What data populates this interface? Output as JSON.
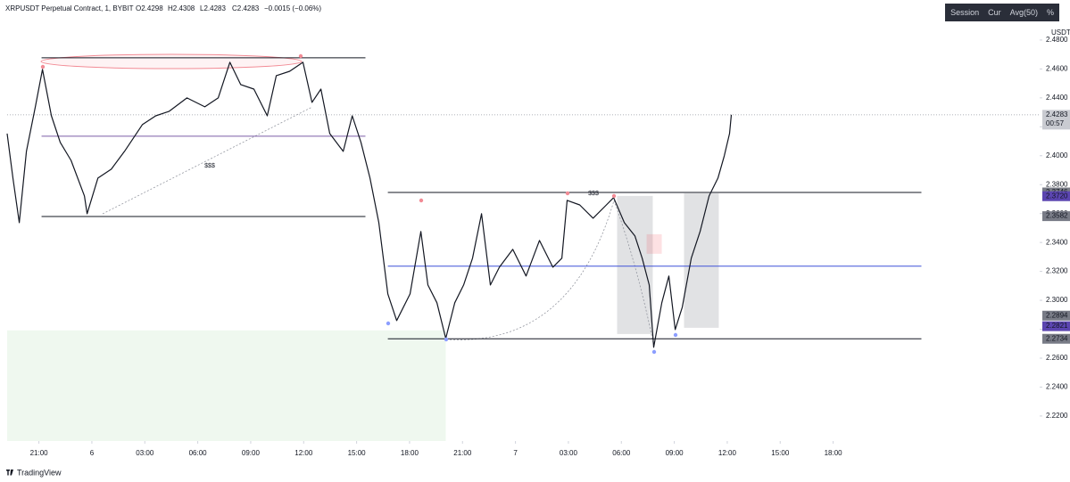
{
  "chart_data": {
    "type": "line",
    "title": "XRPUSDT Perpetual Contract, 1, BYBIT",
    "ohlc": [
      "O2.4298",
      "H2.4308",
      "L2.4283",
      "C2.4283",
      "−0.0015 (−0.06%)"
    ],
    "toolbar": [
      "Session",
      "Cur",
      "Avg(50)",
      "%"
    ],
    "axis_unit": "USDT",
    "brand": "TradingView",
    "countdown": "00:57",
    "color": "#131722",
    "x": [
      19.2,
      19.53,
      19.89,
      20.29,
      20.8,
      21.2,
      21.71,
      22.21,
      22.82,
      23.58,
      23.73,
      24.34,
      25.1,
      25.85,
      26.86,
      27.62,
      28.38,
      29.39,
      30.4,
      31.16,
      31.82,
      32.43,
      33.18,
      33.94,
      34.45,
      35.21,
      35.96,
      36.47,
      36.98,
      37.48,
      38.24,
      38.75,
      39.25,
      39.76,
      40.26,
      40.77,
      41.27,
      42.03,
      42.64,
      43.04,
      43.55,
      44.05,
      44.56,
      45.06,
      45.57,
      46.08,
      46.58,
      47.09,
      47.85,
      48.6,
      49.36,
      50.12,
      50.63,
      50.93,
      51.64,
      52.4,
      53.15,
      53.56,
      54.17,
      54.77,
      55.18,
      55.58,
      55.83,
      56.29,
      56.69,
      57.05,
      57.45,
      57.96,
      58.46,
      58.97,
      59.47,
      59.83,
      60.13,
      60.23
    ],
    "values": [
      2.4153,
      2.3845,
      2.3537,
      2.403,
      2.4338,
      2.4597,
      2.4276,
      2.4092,
      2.3968,
      2.3722,
      2.3599,
      2.3845,
      2.3907,
      2.403,
      2.4215,
      2.4276,
      2.4307,
      2.44,
      2.4338,
      2.44,
      2.4646,
      2.4492,
      2.4461,
      2.4276,
      2.4554,
      2.4584,
      2.4646,
      2.4369,
      2.4461,
      2.4153,
      2.403,
      2.4276,
      2.4092,
      2.3845,
      2.3537,
      2.3044,
      2.286,
      2.3044,
      2.3476,
      2.3106,
      2.2983,
      2.2736,
      2.2983,
      2.3106,
      2.3291,
      2.3599,
      2.3106,
      2.3229,
      2.3352,
      2.3168,
      2.3414,
      2.3229,
      2.3291,
      2.3691,
      2.366,
      2.3568,
      2.366,
      2.371,
      2.3537,
      2.3445,
      2.3291,
      2.3106,
      2.2675,
      2.2983,
      2.3168,
      2.2798,
      2.2952,
      2.3291,
      2.3476,
      2.3722,
      2.3845,
      2.3999,
      2.4153,
      2.4283
    ],
    "xlim": [
      19.2,
      77.7
    ],
    "ylim": [
      2.2027,
      2.4892
    ],
    "xticks": [
      {
        "value": 21,
        "label": "21:00"
      },
      {
        "value": 24,
        "label": "6"
      },
      {
        "value": 27,
        "label": "03:00"
      },
      {
        "value": 30,
        "label": "06:00"
      },
      {
        "value": 33,
        "label": "09:00"
      },
      {
        "value": 36,
        "label": "12:00"
      },
      {
        "value": 39,
        "label": "15:00"
      },
      {
        "value": 42,
        "label": "18:00"
      },
      {
        "value": 45,
        "label": "21:00"
      },
      {
        "value": 48,
        "label": "7"
      },
      {
        "value": 51,
        "label": "03:00"
      },
      {
        "value": 54,
        "label": "06:00"
      },
      {
        "value": 57,
        "label": "09:00"
      },
      {
        "value": 60,
        "label": "12:00"
      },
      {
        "value": 63,
        "label": "15:00"
      },
      {
        "value": 66,
        "label": "18:00"
      }
    ],
    "yticks": [
      {
        "value": 2.48,
        "label": "2.4800"
      },
      {
        "value": 2.46,
        "label": "2.4600"
      },
      {
        "value": 2.44,
        "label": "2.4400"
      },
      {
        "value": 2.42,
        "label": "2.4200"
      },
      {
        "value": 2.4,
        "label": "2.4000"
      },
      {
        "value": 2.38,
        "label": "2.3800"
      },
      {
        "value": 2.36,
        "label": "2.3600"
      },
      {
        "value": 2.34,
        "label": "2.3400"
      },
      {
        "value": 2.32,
        "label": "2.3200"
      },
      {
        "value": 2.3,
        "label": "2.3000"
      },
      {
        "value": 2.28,
        "label": "2.2800"
      },
      {
        "value": 2.26,
        "label": "2.2600"
      },
      {
        "value": 2.24,
        "label": "2.2400"
      },
      {
        "value": 2.22,
        "label": "2.2200"
      }
    ],
    "price_labels": [
      {
        "value": 2.4283,
        "label": "2.4283",
        "color": "#c9cbd1"
      },
      {
        "value": 2.3746,
        "label": "2.3746",
        "color": "#787b86"
      },
      {
        "value": 2.372,
        "label": "2.3720",
        "color": "#5b45b0"
      },
      {
        "value": 2.3582,
        "label": "2.3582",
        "color": "#787b86"
      },
      {
        "value": 2.2894,
        "label": "2.2894",
        "color": "#787b86"
      },
      {
        "value": 2.2821,
        "label": "2.2821",
        "color": "#5b45b0"
      },
      {
        "value": 2.2734,
        "label": "2.2734",
        "color": "#787b86"
      }
    ],
    "levels": [
      {
        "x": [
          21.15,
          39.5
        ],
        "value": 2.4677,
        "color": "#131722"
      },
      {
        "x": [
          21.15,
          39.5
        ],
        "value": 2.4135,
        "color": "#7b5ea7"
      },
      {
        "x": [
          21.15,
          39.5
        ],
        "value": 2.358,
        "color": "#131722"
      },
      {
        "x": [
          40.77,
          71.0
        ],
        "value": 2.3746,
        "color": "#131722"
      },
      {
        "x": [
          40.77,
          71.0
        ],
        "value": 2.3236,
        "color": "#3f51d8"
      },
      {
        "x": [
          40.77,
          71.0
        ],
        "value": 2.2734,
        "color": "#131722"
      }
    ],
    "zones": [
      {
        "x": [
          19.2,
          44.05
        ],
        "y": [
          2.2027,
          2.2792
        ],
        "color": "rgba(76,175,80,0.09)"
      },
      {
        "x": [
          53.76,
          55.78
        ],
        "y": [
          2.2767,
          2.3722
        ],
        "color": "rgba(120,123,134,0.22)"
      },
      {
        "x": [
          55.43,
          56.29
        ],
        "y": [
          2.3322,
          2.3457
        ],
        "color": "rgba(242,54,69,0.15)"
      },
      {
        "x": [
          57.55,
          59.52
        ],
        "y": [
          2.281,
          2.374
        ],
        "color": "rgba(120,123,134,0.22)"
      }
    ],
    "annotations": [
      "$$$",
      "$$$"
    ]
  }
}
